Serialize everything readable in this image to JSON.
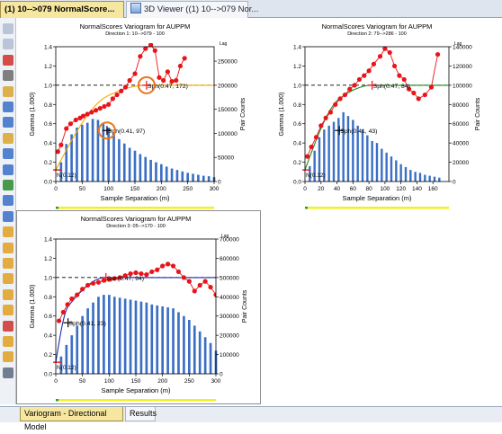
{
  "window": {
    "tabs": [
      {
        "label": "(1) 10-->079  NormalScore...",
        "active": true
      },
      {
        "label": "3D Viewer ((1) 10-->079 Nor...",
        "active": false
      }
    ],
    "bottom_tabs": [
      {
        "label": "Variogram - Directional Model",
        "active": true
      },
      {
        "label": "Results",
        "active": false
      }
    ]
  },
  "toolbar": {
    "icons": [
      "back-arrow-icon",
      "forward-arrow-icon",
      "delete-icon",
      "lock-icon",
      "open-file-icon",
      "zoom-in-icon",
      "zoom-out-icon",
      "print-icon",
      "grid-icon",
      "table-icon",
      "model-curve-icon",
      "edit-icon",
      "fit-icon",
      "variogram-icon",
      "histogram-icon",
      "bar-chart-icon",
      "axis-icon",
      "scale-icon",
      "dots-icon",
      "range-icon",
      "sill-icon",
      "nugget-icon",
      "line-icon"
    ]
  },
  "colors": {
    "experimental": "#e8141a",
    "bars": "#3b6fc4",
    "sill_line": "#000000",
    "model_panel1": "#f5a800",
    "model_panel2": "#1f8a1f",
    "model_panel3": "#1c2fb0",
    "highlight": "#e8761e",
    "axis_strip": "#f4f01e"
  },
  "chart_data": [
    {
      "type": "line",
      "title": "NormalScores  Variogram for AUPPM",
      "subtitle": "Direction 1: 10-->079 - 100",
      "xlabel": "Sample Separation (m)",
      "ylabel": "Gamma (1.000)",
      "y2label": "Pair Counts",
      "y2label_top": "Lag",
      "xlim": [
        0,
        300
      ],
      "ylim": [
        0,
        1.4
      ],
      "y2lim": [
        0,
        280000
      ],
      "xticks": [
        0,
        50,
        100,
        150,
        200,
        250,
        300
      ],
      "yticks": [
        0.0,
        0.2,
        0.4,
        0.6,
        0.8,
        1.0,
        1.2,
        1.4
      ],
      "y2ticks": [
        0,
        50000,
        100000,
        150000,
        200000,
        250000
      ],
      "sill": 1.0,
      "nugget_label": "N(0.12)",
      "structure_labels": [
        "Sph(0.41, 97)",
        "Sph(0.47, 172)"
      ],
      "highlight_label": "Sph(0.47, 172)",
      "bars": {
        "x": [
          10,
          20,
          30,
          40,
          50,
          60,
          70,
          80,
          90,
          100,
          110,
          120,
          130,
          140,
          150,
          160,
          170,
          180,
          190,
          200,
          210,
          220,
          230,
          240,
          250,
          260,
          270,
          280,
          290,
          300
        ],
        "values": [
          40000,
          78000,
          98000,
          112000,
          118000,
          122000,
          130000,
          128000,
          122000,
          112000,
          100000,
          88000,
          79000,
          70000,
          64000,
          57000,
          51000,
          45000,
          40000,
          36000,
          31000,
          27000,
          24000,
          21000,
          18000,
          16000,
          14000,
          12000,
          11000,
          9000
        ]
      },
      "experimental": {
        "x": [
          4,
          10,
          20,
          28,
          38,
          46,
          52,
          60,
          68,
          76,
          84,
          92,
          100,
          108,
          116,
          124,
          132,
          140,
          150,
          160,
          170,
          180,
          188,
          196,
          204,
          212,
          220,
          228,
          236,
          244
        ],
        "y": [
          0.31,
          0.38,
          0.55,
          0.6,
          0.64,
          0.66,
          0.68,
          0.7,
          0.72,
          0.74,
          0.76,
          0.78,
          0.8,
          0.86,
          0.9,
          0.94,
          0.98,
          1.05,
          1.12,
          1.3,
          1.38,
          1.42,
          1.36,
          1.08,
          1.05,
          1.14,
          1.04,
          1.05,
          1.2,
          1.28
        ]
      },
      "model": {
        "nugget": 0.12,
        "structures": [
          {
            "type": "sph",
            "sill": 0.41,
            "range": 97
          },
          {
            "type": "sph",
            "sill": 0.47,
            "range": 172
          }
        ]
      }
    },
    {
      "type": "line",
      "title": "NormalScores  Variogram for AUPPM",
      "subtitle": "Direction 2: 79-->286 - 100",
      "xlabel": "Sample Separation (m)",
      "ylabel": "Gamma (1.000)",
      "y2label": "Pair Counts",
      "y2label_top": "Lag",
      "xlim": [
        0,
        180
      ],
      "ylim": [
        0,
        1.4
      ],
      "y2lim": [
        0,
        140000
      ],
      "xticks": [
        0,
        20,
        40,
        60,
        80,
        100,
        120,
        140,
        160
      ],
      "yticks": [
        0.0,
        0.2,
        0.4,
        0.6,
        0.8,
        1.0,
        1.2,
        1.4
      ],
      "y2ticks": [
        0,
        20000,
        40000,
        60000,
        80000,
        100000,
        120000,
        140000
      ],
      "sill": 1.0,
      "nugget_label": "N(0.12)",
      "structure_labels": [
        "Sph(0.41, 43)",
        "Sph(0.47, 84)"
      ],
      "bars": {
        "x": [
          6,
          12,
          18,
          24,
          30,
          36,
          42,
          48,
          54,
          60,
          66,
          72,
          78,
          84,
          90,
          96,
          102,
          108,
          114,
          120,
          126,
          132,
          138,
          144,
          150,
          156,
          162,
          168
        ],
        "values": [
          16000,
          32000,
          46000,
          54000,
          58000,
          62000,
          66000,
          72000,
          68000,
          64000,
          58000,
          54000,
          48000,
          42000,
          40000,
          34000,
          30000,
          26000,
          22000,
          18000,
          15000,
          12000,
          10000,
          9000,
          7000,
          6000,
          5000,
          4000
        ]
      },
      "experimental": {
        "x": [
          3,
          8,
          14,
          20,
          26,
          32,
          38,
          44,
          50,
          56,
          62,
          68,
          74,
          80,
          86,
          94,
          100,
          106,
          112,
          118,
          124,
          130,
          136,
          142,
          150,
          158,
          166
        ],
        "y": [
          0.26,
          0.36,
          0.46,
          0.58,
          0.66,
          0.72,
          0.8,
          0.86,
          0.9,
          0.96,
          1.0,
          1.06,
          1.1,
          1.15,
          1.22,
          1.3,
          1.38,
          1.34,
          1.2,
          1.1,
          1.06,
          0.96,
          0.92,
          0.86,
          0.9,
          0.98,
          1.32
        ]
      },
      "model": {
        "nugget": 0.12,
        "structures": [
          {
            "type": "sph",
            "sill": 0.41,
            "range": 43
          },
          {
            "type": "sph",
            "sill": 0.47,
            "range": 84
          }
        ]
      }
    },
    {
      "type": "line",
      "title": "NormalScores  Variogram for AUPPM",
      "subtitle": "Direction 3: 05-->170 - 100",
      "xlabel": "Sample Separation (m)",
      "ylabel": "Gamma (1.000)",
      "y2label": "Pair Counts",
      "y2label_top": "Lag",
      "xlim": [
        0,
        300
      ],
      "ylim": [
        0,
        1.4
      ],
      "y2lim": [
        0,
        700000
      ],
      "xticks": [
        0,
        50,
        100,
        150,
        200,
        250,
        300
      ],
      "yticks": [
        0.0,
        0.2,
        0.4,
        0.6,
        0.8,
        1.0,
        1.2,
        1.4
      ],
      "y2ticks": [
        0,
        100000,
        200000,
        300000,
        400000,
        500000,
        600000,
        700000
      ],
      "sill": 1.0,
      "nugget_label": "N(0.12)",
      "structure_labels": [
        "Sph(0.41, 23)",
        "Sph(0.47, 94)"
      ],
      "bars": {
        "x": [
          10,
          20,
          30,
          40,
          50,
          60,
          70,
          80,
          90,
          100,
          110,
          120,
          130,
          140,
          150,
          160,
          170,
          180,
          190,
          200,
          210,
          220,
          230,
          240,
          250,
          260,
          270,
          280,
          290,
          300
        ],
        "values": [
          90000,
          150000,
          200000,
          250000,
          300000,
          340000,
          370000,
          400000,
          410000,
          410000,
          400000,
          395000,
          390000,
          385000,
          380000,
          375000,
          370000,
          360000,
          355000,
          350000,
          345000,
          340000,
          320000,
          300000,
          280000,
          250000,
          220000,
          190000,
          160000,
          120000
        ]
      },
      "experimental": {
        "x": [
          6,
          14,
          22,
          30,
          40,
          50,
          60,
          70,
          80,
          90,
          100,
          110,
          120,
          130,
          140,
          150,
          160,
          170,
          180,
          190,
          200,
          210,
          220,
          230,
          240,
          250,
          260,
          270,
          280,
          290,
          300
        ],
        "y": [
          0.55,
          0.64,
          0.72,
          0.78,
          0.82,
          0.88,
          0.92,
          0.94,
          0.95,
          0.97,
          0.98,
          0.99,
          1.0,
          1.02,
          1.04,
          1.05,
          1.04,
          1.03,
          1.06,
          1.08,
          1.12,
          1.14,
          1.12,
          1.06,
          1.0,
          0.96,
          0.86,
          0.92,
          0.96,
          0.9,
          0.82
        ]
      },
      "model": {
        "nugget": 0.12,
        "structures": [
          {
            "type": "sph",
            "sill": 0.41,
            "range": 23
          },
          {
            "type": "sph",
            "sill": 0.47,
            "range": 94
          }
        ]
      }
    }
  ]
}
